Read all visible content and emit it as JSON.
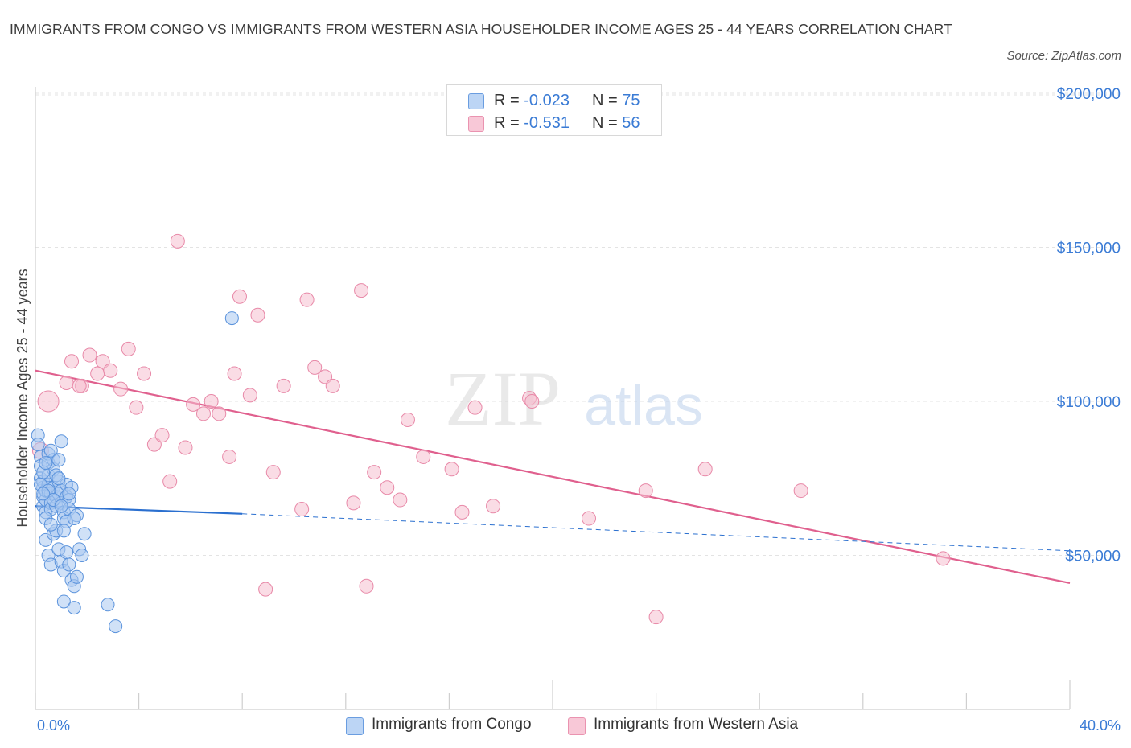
{
  "title": "IMMIGRANTS FROM CONGO VS IMMIGRANTS FROM WESTERN ASIA HOUSEHOLDER INCOME AGES 25 - 44 YEARS CORRELATION CHART",
  "source": "Source: ZipAtlas.com",
  "watermark": {
    "zip": "ZIP",
    "atlas": "atlas"
  },
  "legend": {
    "rows": [
      {
        "r_label": "R =",
        "r_value": "-0.023",
        "n_label": "N =",
        "n_value": "75"
      },
      {
        "r_label": "R =",
        "r_value": "-0.531",
        "n_label": "N =",
        "n_value": "56"
      }
    ]
  },
  "bottom_legend": {
    "series1": "Immigrants from Congo",
    "series2": "Immigrants from Western Asia"
  },
  "colors": {
    "congo_fill": "#aac8f0",
    "congo_stroke": "#5b93dc",
    "congo_line": "#2a6fcf",
    "wasia_fill": "#f6bfd0",
    "wasia_stroke": "#e889a8",
    "wasia_line": "#e0608e",
    "tick_label": "#3a7bd5",
    "grid": "#e3e3e3"
  },
  "chart_data": {
    "type": "scatter",
    "title": "IMMIGRANTS FROM CONGO VS IMMIGRANTS FROM WESTERN ASIA HOUSEHOLDER INCOME AGES 25 - 44 YEARS CORRELATION CHART",
    "xlabel": "",
    "ylabel": "Householder Income Ages 25 - 44 years",
    "xlim": [
      0,
      40
    ],
    "ylim": [
      0,
      200000
    ],
    "x_tick_labels": [
      "0.0%",
      "40.0%"
    ],
    "y_ticks": [
      50000,
      100000,
      150000,
      200000
    ],
    "y_tick_labels": [
      "$50,000",
      "$100,000",
      "$150,000",
      "$200,000"
    ],
    "grid": true,
    "legend_placement": "top-center",
    "series": [
      {
        "name": "Immigrants from Congo",
        "R": -0.023,
        "N": 75,
        "trend": {
          "x": [
            0,
            8
          ],
          "y": [
            66000,
            63500
          ]
        },
        "trend_dashed": {
          "x": [
            8,
            40
          ],
          "y": [
            63500,
            51500
          ]
        },
        "points": [
          [
            0.1,
            89000
          ],
          [
            0.1,
            86000
          ],
          [
            0.2,
            82000
          ],
          [
            0.2,
            79000
          ],
          [
            0.2,
            75000
          ],
          [
            0.3,
            72000
          ],
          [
            0.3,
            74000
          ],
          [
            0.3,
            69000
          ],
          [
            0.3,
            66000
          ],
          [
            0.4,
            64000
          ],
          [
            0.4,
            68000
          ],
          [
            0.4,
            71000
          ],
          [
            0.5,
            73000
          ],
          [
            0.5,
            76000
          ],
          [
            0.5,
            80000
          ],
          [
            0.5,
            83000
          ],
          [
            0.6,
            70000
          ],
          [
            0.6,
            67000
          ],
          [
            0.6,
            65000
          ],
          [
            0.7,
            72000
          ],
          [
            0.7,
            78000
          ],
          [
            0.7,
            81000
          ],
          [
            0.8,
            69000
          ],
          [
            0.8,
            66000
          ],
          [
            0.9,
            74000
          ],
          [
            0.9,
            70000
          ],
          [
            1.0,
            71000
          ],
          [
            1.0,
            67000
          ],
          [
            1.1,
            64000
          ],
          [
            1.1,
            62000
          ],
          [
            1.2,
            69000
          ],
          [
            1.2,
            73000
          ],
          [
            1.3,
            68000
          ],
          [
            1.3,
            65000
          ],
          [
            0.4,
            55000
          ],
          [
            0.5,
            50000
          ],
          [
            0.6,
            47000
          ],
          [
            0.7,
            57000
          ],
          [
            0.8,
            58000
          ],
          [
            0.9,
            52000
          ],
          [
            1.0,
            48000
          ],
          [
            1.1,
            45000
          ],
          [
            1.2,
            51000
          ],
          [
            1.3,
            47000
          ],
          [
            1.4,
            42000
          ],
          [
            1.5,
            40000
          ],
          [
            1.6,
            43000
          ],
          [
            1.7,
            52000
          ],
          [
            1.8,
            50000
          ],
          [
            1.9,
            57000
          ],
          [
            1.1,
            35000
          ],
          [
            1.5,
            33000
          ],
          [
            2.8,
            34000
          ],
          [
            3.1,
            27000
          ],
          [
            7.6,
            127000
          ],
          [
            1.0,
            87000
          ],
          [
            0.6,
            84000
          ],
          [
            0.9,
            81000
          ],
          [
            0.3,
            77000
          ],
          [
            0.2,
            73000
          ],
          [
            0.4,
            62000
          ],
          [
            1.4,
            72000
          ],
          [
            1.3,
            70000
          ],
          [
            1.6,
            63000
          ],
          [
            0.8,
            76000
          ],
          [
            0.5,
            71000
          ],
          [
            0.7,
            68000
          ],
          [
            1.0,
            66000
          ],
          [
            1.2,
            61000
          ],
          [
            0.6,
            60000
          ],
          [
            1.5,
            62000
          ],
          [
            0.9,
            75000
          ],
          [
            0.4,
            80000
          ],
          [
            0.3,
            70000
          ],
          [
            1.1,
            58000
          ]
        ]
      },
      {
        "name": "Immigrants from Western Asia",
        "R": -0.531,
        "N": 56,
        "trend": {
          "x": [
            0,
            40
          ],
          "y": [
            110000,
            41000
          ]
        },
        "points": [
          [
            0.5,
            100000
          ],
          [
            0.2,
            84000
          ],
          [
            1.2,
            106000
          ],
          [
            1.4,
            113000
          ],
          [
            1.8,
            105000
          ],
          [
            2.1,
            115000
          ],
          [
            2.4,
            109000
          ],
          [
            2.6,
            113000
          ],
          [
            2.9,
            110000
          ],
          [
            3.3,
            104000
          ],
          [
            3.6,
            117000
          ],
          [
            3.9,
            98000
          ],
          [
            4.2,
            109000
          ],
          [
            4.6,
            86000
          ],
          [
            4.9,
            89000
          ],
          [
            5.2,
            74000
          ],
          [
            5.5,
            152000
          ],
          [
            5.8,
            85000
          ],
          [
            6.1,
            99000
          ],
          [
            6.5,
            96000
          ],
          [
            6.8,
            100000
          ],
          [
            7.1,
            96000
          ],
          [
            7.5,
            82000
          ],
          [
            7.7,
            109000
          ],
          [
            7.9,
            134000
          ],
          [
            8.3,
            102000
          ],
          [
            8.6,
            128000
          ],
          [
            8.9,
            39000
          ],
          [
            9.2,
            77000
          ],
          [
            9.6,
            105000
          ],
          [
            10.3,
            65000
          ],
          [
            10.5,
            133000
          ],
          [
            10.8,
            111000
          ],
          [
            11.2,
            108000
          ],
          [
            11.5,
            105000
          ],
          [
            12.3,
            67000
          ],
          [
            12.6,
            136000
          ],
          [
            12.8,
            40000
          ],
          [
            13.1,
            77000
          ],
          [
            13.6,
            72000
          ],
          [
            14.1,
            68000
          ],
          [
            14.4,
            94000
          ],
          [
            15.0,
            82000
          ],
          [
            16.1,
            78000
          ],
          [
            16.5,
            64000
          ],
          [
            17.0,
            98000
          ],
          [
            17.7,
            66000
          ],
          [
            19.1,
            101000
          ],
          [
            19.2,
            100000
          ],
          [
            21.4,
            62000
          ],
          [
            23.6,
            71000
          ],
          [
            24.0,
            30000
          ],
          [
            25.9,
            78000
          ],
          [
            29.6,
            71000
          ],
          [
            35.1,
            49000
          ],
          [
            1.7,
            105000
          ]
        ]
      }
    ]
  }
}
